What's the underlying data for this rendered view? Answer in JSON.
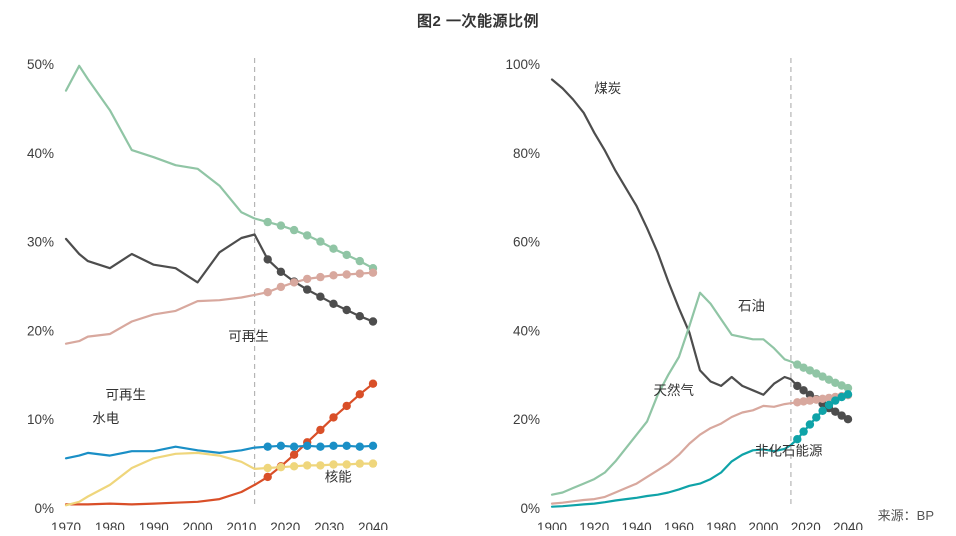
{
  "page": {
    "title": "图2 一次能源比例",
    "source": "来源：BP",
    "background": "#ffffff",
    "divider_color": "#b5b5b5",
    "text_color": "#333333"
  },
  "chart_data": [
    {
      "id": "left",
      "type": "line",
      "title": "",
      "xlabel": "",
      "ylabel": "",
      "xlim": [
        1970,
        2040
      ],
      "ylim": [
        0,
        50
      ],
      "x_ticks": [
        1970,
        1980,
        1990,
        2000,
        2010,
        2020,
        2030,
        2040
      ],
      "y_ticks": [
        0,
        10,
        20,
        30,
        40,
        50
      ],
      "grid": false,
      "legend": "inline-labels",
      "divider_year": 2013,
      "forecast_from": 2016,
      "x": [
        1970,
        1973,
        1975,
        1980,
        1985,
        1990,
        1995,
        2000,
        2005,
        2010,
        2013,
        2016,
        2019,
        2022,
        2025,
        2028,
        2031,
        2034,
        2037,
        2040
      ],
      "series": [
        {
          "key": "oil",
          "name": "石油",
          "color": "#90c5a5",
          "x": [
            1970,
            1973,
            1975,
            1980,
            1985,
            1990,
            1995,
            2000,
            2005,
            2010,
            2013,
            2016,
            2019,
            2022,
            2025,
            2028,
            2031,
            2034,
            2037,
            2040
          ],
          "y": [
            47,
            49.8,
            48.3,
            44.8,
            40.3,
            39.5,
            38.6,
            38.2,
            36.3,
            33.3,
            32.6,
            32.2,
            31.8,
            31.3,
            30.7,
            30.0,
            29.2,
            28.5,
            27.8,
            27.0
          ]
        },
        {
          "key": "coal",
          "name": "煤炭",
          "color": "#4d4d4d",
          "x": [
            1970,
            1973,
            1975,
            1980,
            1985,
            1990,
            1995,
            2000,
            2005,
            2010,
            2013,
            2016,
            2019,
            2022,
            2025,
            2028,
            2031,
            2034,
            2037,
            2040
          ],
          "y": [
            30.3,
            28.6,
            27.8,
            27.0,
            28.6,
            27.4,
            27.0,
            25.4,
            28.8,
            30.4,
            30.8,
            28.0,
            26.6,
            25.5,
            24.6,
            23.8,
            23.0,
            22.3,
            21.6,
            21.0
          ]
        },
        {
          "key": "gas",
          "name": "天然气",
          "color": "#d8a89e",
          "x": [
            1970,
            1973,
            1975,
            1980,
            1985,
            1990,
            1995,
            2000,
            2005,
            2010,
            2013,
            2016,
            2019,
            2022,
            2025,
            2028,
            2031,
            2034,
            2037,
            2040
          ],
          "y": [
            18.5,
            18.8,
            19.3,
            19.6,
            21.0,
            21.8,
            22.2,
            23.3,
            23.4,
            23.7,
            24.0,
            24.3,
            24.9,
            25.4,
            25.8,
            26.0,
            26.2,
            26.3,
            26.4,
            26.5
          ]
        },
        {
          "key": "renewables",
          "name": "可再生",
          "color": "#d94f28",
          "x": [
            1970,
            1973,
            1975,
            1980,
            1985,
            1990,
            1995,
            2000,
            2005,
            2010,
            2013,
            2016,
            2019,
            2022,
            2025,
            2028,
            2031,
            2034,
            2037,
            2040
          ],
          "y": [
            0.4,
            0.4,
            0.4,
            0.5,
            0.4,
            0.5,
            0.6,
            0.7,
            1.0,
            1.8,
            2.6,
            3.5,
            4.7,
            6.0,
            7.4,
            8.8,
            10.2,
            11.5,
            12.8,
            14.0
          ]
        },
        {
          "key": "hydro",
          "name": "水电",
          "color": "#1a8fc6",
          "x": [
            1970,
            1973,
            1975,
            1980,
            1985,
            1990,
            1995,
            2000,
            2005,
            2010,
            2013,
            2016,
            2019,
            2022,
            2025,
            2028,
            2031,
            2034,
            2037,
            2040
          ],
          "y": [
            5.6,
            5.9,
            6.2,
            5.9,
            6.4,
            6.4,
            6.9,
            6.5,
            6.2,
            6.5,
            6.8,
            6.9,
            7.0,
            6.9,
            7.0,
            6.9,
            7.0,
            7.0,
            6.9,
            7.0
          ]
        },
        {
          "key": "nuclear",
          "name": "核能",
          "color": "#efd67c",
          "x": [
            1970,
            1973,
            1975,
            1980,
            1985,
            1990,
            1995,
            2000,
            2005,
            2010,
            2013,
            2016,
            2019,
            2022,
            2025,
            2028,
            2031,
            2034,
            2037,
            2040
          ],
          "y": [
            0.3,
            0.7,
            1.3,
            2.6,
            4.5,
            5.6,
            6.1,
            6.2,
            5.9,
            5.2,
            4.4,
            4.5,
            4.6,
            4.7,
            4.8,
            4.8,
            4.9,
            4.9,
            5.0,
            5.0
          ]
        }
      ],
      "annotations": [
        {
          "text": "可再生",
          "year": 2007,
          "value": 18.8
        },
        {
          "text": "可再生",
          "year": 1979,
          "value": 12.2
        },
        {
          "text": "水电",
          "year": 1976,
          "value": 9.6
        },
        {
          "text": "核能",
          "year": 2029,
          "value": 3.0
        }
      ]
    },
    {
      "id": "right",
      "type": "line",
      "title": "",
      "xlabel": "",
      "ylabel": "",
      "xlim": [
        1900,
        2040
      ],
      "ylim": [
        0,
        100
      ],
      "x_ticks": [
        1900,
        1920,
        1940,
        1960,
        1980,
        2000,
        2020,
        2040
      ],
      "y_ticks": [
        0,
        20,
        40,
        60,
        80,
        100
      ],
      "grid": false,
      "legend": "inline-labels",
      "divider_year": 2013,
      "forecast_from": 2016,
      "x": [
        1900,
        1905,
        1910,
        1915,
        1920,
        1925,
        1930,
        1935,
        1940,
        1945,
        1950,
        1955,
        1960,
        1965,
        1970,
        1975,
        1980,
        1985,
        1990,
        1995,
        2000,
        2005,
        2010,
        2013,
        2016,
        2019,
        2022,
        2025,
        2028,
        2031,
        2034,
        2037,
        2040
      ],
      "series": [
        {
          "key": "coal",
          "name": "煤炭",
          "color": "#4d4d4d",
          "x": [
            1900,
            1905,
            1910,
            1915,
            1920,
            1925,
            1930,
            1935,
            1940,
            1945,
            1950,
            1955,
            1960,
            1965,
            1970,
            1975,
            1980,
            1985,
            1990,
            1995,
            2000,
            2005,
            2010,
            2013,
            2016,
            2019,
            2022,
            2025,
            2028,
            2031,
            2034,
            2037,
            2040
          ],
          "y": [
            96.5,
            94.5,
            92,
            89,
            84.5,
            80.5,
            76,
            72,
            68,
            63,
            57.5,
            51,
            45,
            39.5,
            31,
            28.5,
            27.5,
            29.5,
            27.5,
            26.5,
            25.5,
            28,
            29.5,
            29,
            27.5,
            26.5,
            25.5,
            24.5,
            23.5,
            22.5,
            21.7,
            20.8,
            20
          ]
        },
        {
          "key": "oil",
          "name": "石油",
          "color": "#90c5a5",
          "x": [
            1900,
            1905,
            1910,
            1915,
            1920,
            1925,
            1930,
            1935,
            1940,
            1945,
            1950,
            1955,
            1960,
            1965,
            1970,
            1975,
            1980,
            1985,
            1990,
            1995,
            2000,
            2005,
            2010,
            2013,
            2016,
            2019,
            2022,
            2025,
            2028,
            2031,
            2034,
            2037,
            2040
          ],
          "y": [
            3,
            3.5,
            4.5,
            5.5,
            6.5,
            8,
            10.5,
            13.5,
            16.5,
            19.5,
            25.5,
            30,
            34,
            41,
            48.5,
            46,
            42.5,
            39,
            38.5,
            38,
            38,
            36,
            33.5,
            33,
            32.3,
            31.6,
            31,
            30.3,
            29.6,
            28.9,
            28.2,
            27.6,
            27
          ]
        },
        {
          "key": "gas",
          "name": "天然气",
          "color": "#d8a89e",
          "x": [
            1900,
            1905,
            1910,
            1915,
            1920,
            1925,
            1930,
            1935,
            1940,
            1945,
            1950,
            1955,
            1960,
            1965,
            1970,
            1975,
            1980,
            1985,
            1990,
            1995,
            2000,
            2005,
            2010,
            2013,
            2016,
            2019,
            2022,
            2025,
            2028,
            2031,
            2034,
            2037,
            2040
          ],
          "y": [
            1,
            1.2,
            1.5,
            1.8,
            2,
            2.5,
            3.5,
            4.5,
            5.5,
            7,
            8.5,
            10,
            12,
            14.5,
            16.5,
            18,
            19,
            20.5,
            21.5,
            22,
            23,
            22.8,
            23.4,
            23.6,
            23.8,
            24,
            24.2,
            24.4,
            24.6,
            24.8,
            25,
            25.2,
            25.4
          ]
        },
        {
          "key": "non-fossil",
          "name": "非化石能源",
          "color": "#0fa3a8",
          "x": [
            1900,
            1905,
            1910,
            1915,
            1920,
            1925,
            1930,
            1935,
            1940,
            1945,
            1950,
            1955,
            1960,
            1965,
            1970,
            1975,
            1980,
            1985,
            1990,
            1995,
            2000,
            2005,
            2010,
            2013,
            2016,
            2019,
            2022,
            2025,
            2028,
            2031,
            2034,
            2037,
            2040
          ],
          "y": [
            0.3,
            0.4,
            0.6,
            0.8,
            1,
            1.3,
            1.7,
            2,
            2.3,
            2.7,
            3,
            3.5,
            4.2,
            5,
            5.5,
            6.5,
            8,
            10.5,
            12,
            13,
            13.2,
            12.8,
            13.3,
            14.2,
            15.5,
            17.2,
            18.8,
            20.4,
            21.9,
            23.2,
            24.2,
            25,
            25.6
          ]
        }
      ],
      "annotations": [
        {
          "text": "煤炭",
          "year": 1920,
          "value": 93.5
        },
        {
          "text": "石油",
          "year": 1988,
          "value": 44.5
        },
        {
          "text": "天然气",
          "year": 1948,
          "value": 25.5
        },
        {
          "text": "非化石能源",
          "year": 1996,
          "value": 11.8
        }
      ]
    }
  ]
}
